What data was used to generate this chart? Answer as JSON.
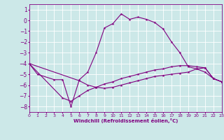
{
  "background_color": "#cce8e8",
  "grid_color": "#ffffff",
  "line_color": "#800080",
  "xlabel": "Windchill (Refroidissement éolien,°C)",
  "xlim": [
    0,
    23
  ],
  "ylim": [
    -8.5,
    1.5
  ],
  "yticks": [
    1,
    0,
    -1,
    -2,
    -3,
    -4,
    -5,
    -6,
    -7,
    -8
  ],
  "xticks": [
    0,
    1,
    2,
    3,
    4,
    5,
    6,
    7,
    8,
    9,
    10,
    11,
    12,
    13,
    14,
    15,
    16,
    17,
    18,
    19,
    20,
    21,
    22,
    23
  ],
  "series": [
    {
      "x": [
        0,
        1,
        3,
        4,
        5,
        6,
        7,
        8,
        9,
        10,
        11,
        12,
        13,
        14,
        15,
        16,
        17,
        18,
        19,
        20,
        21,
        22,
        23
      ],
      "y": [
        -4.0,
        -5.0,
        -5.5,
        -5.5,
        -8.0,
        -5.5,
        -4.8,
        -3.0,
        -0.7,
        -0.3,
        0.6,
        0.1,
        0.3,
        0.1,
        -0.2,
        -0.8,
        -2.0,
        -3.0,
        -4.3,
        -4.5,
        -4.8,
        -5.4,
        -5.7
      ]
    },
    {
      "x": [
        0,
        4,
        5,
        6,
        7,
        8,
        9,
        10,
        11,
        12,
        13,
        14,
        15,
        16,
        17,
        18,
        19,
        20,
        21,
        22,
        23
      ],
      "y": [
        -4.0,
        -7.2,
        -7.5,
        -7.0,
        -6.5,
        -6.2,
        -5.9,
        -5.7,
        -5.4,
        -5.2,
        -5.0,
        -4.8,
        -4.6,
        -4.5,
        -4.3,
        -4.2,
        -4.2,
        -4.3,
        -4.4,
        -5.4,
        -5.7
      ]
    },
    {
      "x": [
        0,
        6,
        7,
        8,
        9,
        10,
        11,
        12,
        13,
        14,
        15,
        16,
        17,
        18,
        19,
        20,
        21,
        22,
        23
      ],
      "y": [
        -4.0,
        -5.6,
        -6.0,
        -6.2,
        -6.3,
        -6.2,
        -6.0,
        -5.8,
        -5.6,
        -5.4,
        -5.2,
        -5.1,
        -5.0,
        -4.9,
        -4.8,
        -4.5,
        -4.4,
        -5.4,
        -5.7
      ]
    }
  ]
}
